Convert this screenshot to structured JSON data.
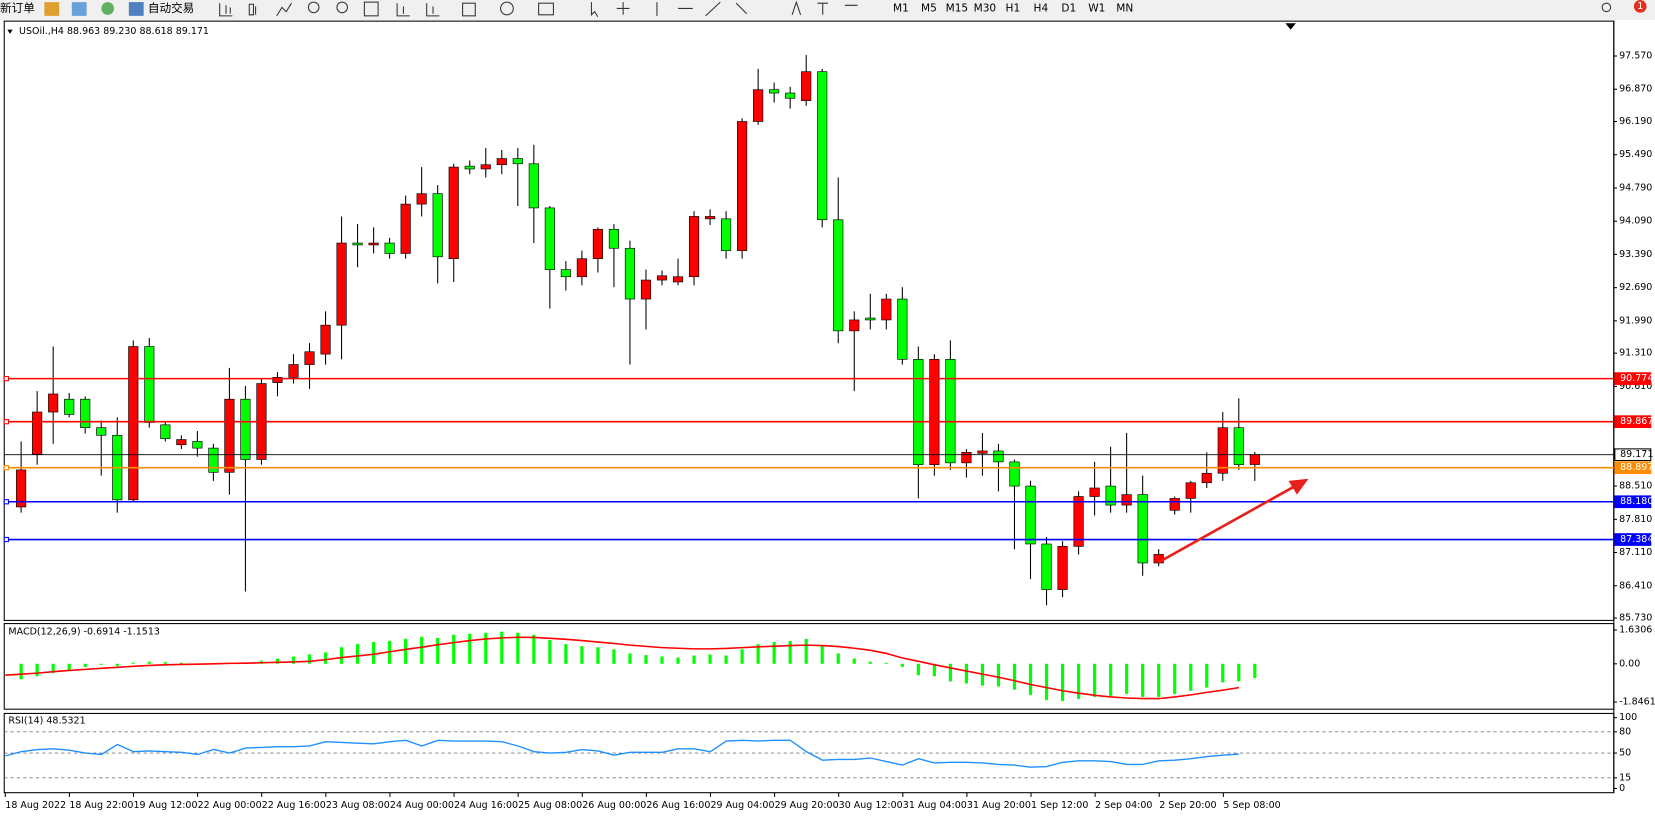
{
  "toolbar": {
    "new_order": "新订单",
    "auto_trading": "自动交易",
    "timeframes": [
      "M1",
      "M5",
      "M15",
      "M30",
      "H1",
      "H4",
      "D1",
      "W1",
      "MN"
    ],
    "notifications": 1
  },
  "chart_data": [
    {
      "type": "candlestick",
      "title": "USOil.,H4 88.963 89.230 88.618 89.171",
      "up_color": "#ff0000",
      "down_color": "#00ff00",
      "wick_color": "#000000",
      "open": [
        88.07,
        89.18,
        90.07,
        90.34,
        90.34,
        89.74,
        89.58,
        88.22,
        91.45,
        89.8,
        89.38,
        89.45,
        89.31,
        88.8,
        90.34,
        89.07,
        90.69,
        90.8,
        91.07,
        91.29,
        91.9,
        93.63,
        93.59,
        93.63,
        93.41,
        94.45,
        94.67,
        93.3,
        95.25,
        95.19,
        95.28,
        95.41,
        95.3,
        94.37,
        93.07,
        92.92,
        93.3,
        93.92,
        93.52,
        92.45,
        92.85,
        92.81,
        92.92,
        94.14,
        94.14,
        93.47,
        96.19,
        96.86,
        96.79,
        96.63,
        97.24,
        94.12,
        91.78,
        92.05,
        92.01,
        92.45,
        91.18,
        88.96,
        91.18,
        89.0,
        89.2,
        89.25,
        89.02,
        88.51,
        87.29,
        86.33,
        87.24,
        88.29,
        88.51,
        88.11,
        88.33,
        86.89,
        88.0,
        88.25,
        88.58,
        88.78,
        89.74,
        88.963
      ],
      "high": [
        89.45,
        90.51,
        91.45,
        90.47,
        90.4,
        89.89,
        89.96,
        91.58,
        91.63,
        89.85,
        89.58,
        89.67,
        89.4,
        91.0,
        90.62,
        90.78,
        90.91,
        91.29,
        91.52,
        92.19,
        94.19,
        94.03,
        93.96,
        93.74,
        94.63,
        95.23,
        94.85,
        95.3,
        95.37,
        95.63,
        95.59,
        95.63,
        95.7,
        94.41,
        93.25,
        93.47,
        93.96,
        94.03,
        93.68,
        93.07,
        93.05,
        93.3,
        94.3,
        94.34,
        94.3,
        96.26,
        97.3,
        97.01,
        96.92,
        97.59,
        97.3,
        95.01,
        92.19,
        92.56,
        92.56,
        92.7,
        91.45,
        91.29,
        91.58,
        89.29,
        89.63,
        89.4,
        89.07,
        88.62,
        87.44,
        87.35,
        88.4,
        89.02,
        89.34,
        89.63,
        88.73,
        87.18,
        88.29,
        88.62,
        89.22,
        90.07,
        90.36,
        89.23
      ],
      "low": [
        87.95,
        88.96,
        89.4,
        89.96,
        89.62,
        88.73,
        87.95,
        88.18,
        89.74,
        89.45,
        89.29,
        89.13,
        88.62,
        88.33,
        86.29,
        88.96,
        90.4,
        90.67,
        90.56,
        91.07,
        91.18,
        93.12,
        93.41,
        93.3,
        93.3,
        94.19,
        92.78,
        92.81,
        95.08,
        95.01,
        95.08,
        94.41,
        93.63,
        92.25,
        92.63,
        92.74,
        93.01,
        92.7,
        91.07,
        91.81,
        92.74,
        92.74,
        92.74,
        94.01,
        93.3,
        93.3,
        96.12,
        96.59,
        96.46,
        96.52,
        93.96,
        91.52,
        90.51,
        91.81,
        91.81,
        91.07,
        88.25,
        88.73,
        88.85,
        88.69,
        88.73,
        88.4,
        87.18,
        86.55,
        86.0,
        86.17,
        87.07,
        87.89,
        87.95,
        87.95,
        86.62,
        86.82,
        87.91,
        87.95,
        88.47,
        88.62,
        88.85,
        88.618
      ],
      "close": [
        88.85,
        90.07,
        90.45,
        90.02,
        89.74,
        89.58,
        88.22,
        91.45,
        89.85,
        89.51,
        89.49,
        89.31,
        88.8,
        90.34,
        89.07,
        90.67,
        90.8,
        91.07,
        91.34,
        91.9,
        93.63,
        93.59,
        93.63,
        93.41,
        94.45,
        94.67,
        93.34,
        95.23,
        95.19,
        95.28,
        95.41,
        95.3,
        94.37,
        93.07,
        92.92,
        93.3,
        93.92,
        93.52,
        92.45,
        92.85,
        92.94,
        92.92,
        94.19,
        94.19,
        93.47,
        96.19,
        96.86,
        96.79,
        96.68,
        97.24,
        94.12,
        91.78,
        92.01,
        92.01,
        92.45,
        91.18,
        88.96,
        91.18,
        89.0,
        89.22,
        89.25,
        89.02,
        88.51,
        87.29,
        86.33,
        87.24,
        88.29,
        88.47,
        88.11,
        88.33,
        86.89,
        87.07,
        88.25,
        88.58,
        88.78,
        89.74,
        88.96,
        89.171
      ],
      "ylim": [
        85.68,
        98.26
      ],
      "grid": false,
      "yticks": [
        {
          "value": 97.57,
          "label": "97.570"
        },
        {
          "value": 96.87,
          "label": "96.870"
        },
        {
          "value": 96.19,
          "label": "96.190"
        },
        {
          "value": 95.49,
          "label": "95.490"
        },
        {
          "value": 94.79,
          "label": "94.790"
        },
        {
          "value": 94.09,
          "label": "94.090"
        },
        {
          "value": 93.39,
          "label": "93.390"
        },
        {
          "value": 92.69,
          "label": "92.690"
        },
        {
          "value": 91.99,
          "label": "91.990"
        },
        {
          "value": 91.31,
          "label": "91.310"
        },
        {
          "value": 90.61,
          "label": "90.610"
        },
        {
          "value": 88.51,
          "label": "88.510"
        },
        {
          "value": 87.81,
          "label": "87.810"
        },
        {
          "value": 87.11,
          "label": "87.110"
        },
        {
          "value": 86.41,
          "label": "86.410"
        },
        {
          "value": 85.73,
          "label": "85.730"
        }
      ],
      "levels": [
        {
          "value": 90.774,
          "label": "90.774",
          "color": "#ff0000"
        },
        {
          "value": 89.867,
          "label": "89.867",
          "color": "#ff0000"
        },
        {
          "value": 89.171,
          "label": "89.171",
          "color": "#000000"
        },
        {
          "value": 88.897,
          "label": "88.897",
          "color": "#ff8c00"
        },
        {
          "value": 88.18,
          "label": "88.180",
          "color": "#0000ff"
        },
        {
          "value": 87.384,
          "label": "87.384",
          "color": "#0000ff"
        }
      ],
      "time_labels": [
        "18 Aug 2022",
        "18 Aug 22:00",
        "19 Aug 12:00",
        "22 Aug 00:00",
        "22 Aug 16:00",
        "23 Aug 08:00",
        "24 Aug 00:00",
        "24 Aug 16:00",
        "25 Aug 08:00",
        "26 Aug 00:00",
        "26 Aug 16:00",
        "29 Aug 04:00",
        "29 Aug 20:00",
        "30 Aug 12:00",
        "31 Aug 04:00",
        "31 Aug 20:00",
        "1 Sep 12:00",
        "2 Sep 04:00",
        "2 Sep 20:00",
        "5 Sep 08:00"
      ]
    },
    {
      "type": "macd",
      "title": "MACD(12,26,9) -0.6914 -1.1513",
      "histogram": {
        "color": "#00ff00",
        "values": [
          -0.75,
          -0.6,
          -0.45,
          -0.3,
          -0.15,
          -0.05,
          -0.1,
          0.05,
          0.1,
          0.08,
          0.05,
          0.02,
          -0.02,
          0.05,
          0.05,
          0.15,
          0.25,
          0.35,
          0.45,
          0.55,
          0.8,
          0.95,
          1.05,
          1.1,
          1.2,
          1.3,
          1.25,
          1.4,
          1.45,
          1.5,
          1.55,
          1.5,
          1.4,
          1.15,
          0.95,
          0.85,
          0.8,
          0.7,
          0.5,
          0.42,
          0.35,
          0.3,
          0.4,
          0.45,
          0.4,
          0.7,
          0.95,
          1.05,
          1.1,
          1.2,
          0.9,
          0.5,
          0.25,
          0.1,
          0.05,
          -0.15,
          -0.55,
          -0.6,
          -0.85,
          -0.95,
          -1.05,
          -1.1,
          -1.25,
          -1.5,
          -1.75,
          -1.8,
          -1.7,
          -1.6,
          -1.55,
          -1.45,
          -1.6,
          -1.6,
          -1.45,
          -1.3,
          -1.15,
          -0.9,
          -0.85,
          -0.6914
        ]
      },
      "signal": {
        "color": "#ff0000",
        "values": [
          -0.55,
          -0.5,
          -0.45,
          -0.38,
          -0.32,
          -0.27,
          -0.22,
          -0.17,
          -0.12,
          -0.08,
          -0.05,
          -0.03,
          -0.02,
          0,
          0.02,
          0.03,
          0.05,
          0.07,
          0.09,
          0.12,
          0.2,
          0.3,
          0.38,
          0.46,
          0.58,
          0.7,
          0.8,
          0.92,
          1.02,
          1.12,
          1.2,
          1.25,
          1.28,
          1.27,
          1.23,
          1.18,
          1.12,
          1.05,
          0.98,
          0.9,
          0.84,
          0.78,
          0.75,
          0.72,
          0.72,
          0.74,
          0.78,
          0.82,
          0.85,
          0.88,
          0.9,
          0.88,
          0.83,
          0.75,
          0.65,
          0.5,
          0.28,
          0.12,
          -0.05,
          -0.2,
          -0.35,
          -0.5,
          -0.65,
          -0.82,
          -1.0,
          -1.15,
          -1.3,
          -1.42,
          -1.52,
          -1.6,
          -1.65,
          -1.68,
          -1.68,
          -1.6,
          -1.5,
          -1.38,
          -1.27,
          -1.1513
        ]
      },
      "ylim": [
        -2.14,
        1.94
      ],
      "yticks": [
        1.6306,
        {
          "value": 0,
          "label": "0.00"
        },
        -1.8461
      ]
    },
    {
      "type": "line",
      "title": "RSI(14) 48.5321",
      "color": "#1e90ff",
      "values": [
        46,
        52,
        55,
        56,
        54,
        50,
        48,
        62,
        52,
        53,
        52,
        51,
        48,
        55,
        50,
        57,
        58,
        59,
        59,
        60,
        66,
        65,
        64,
        63,
        66,
        68,
        60,
        68,
        67,
        67,
        67,
        66,
        60,
        52,
        50,
        51,
        55,
        53,
        47,
        51,
        51,
        51,
        56,
        56,
        52,
        67,
        68,
        67,
        68,
        68,
        52,
        40,
        41,
        41,
        43,
        38,
        33,
        42,
        36,
        37,
        37,
        36,
        34,
        33,
        30,
        31,
        37,
        39,
        39,
        38,
        34,
        34,
        39,
        40,
        42,
        45,
        47,
        48.5321
      ],
      "ylim": [
        0,
        100
      ],
      "yticks": [
        100,
        80,
        50,
        15,
        0
      ],
      "levels": [
        80,
        50,
        15
      ]
    }
  ]
}
